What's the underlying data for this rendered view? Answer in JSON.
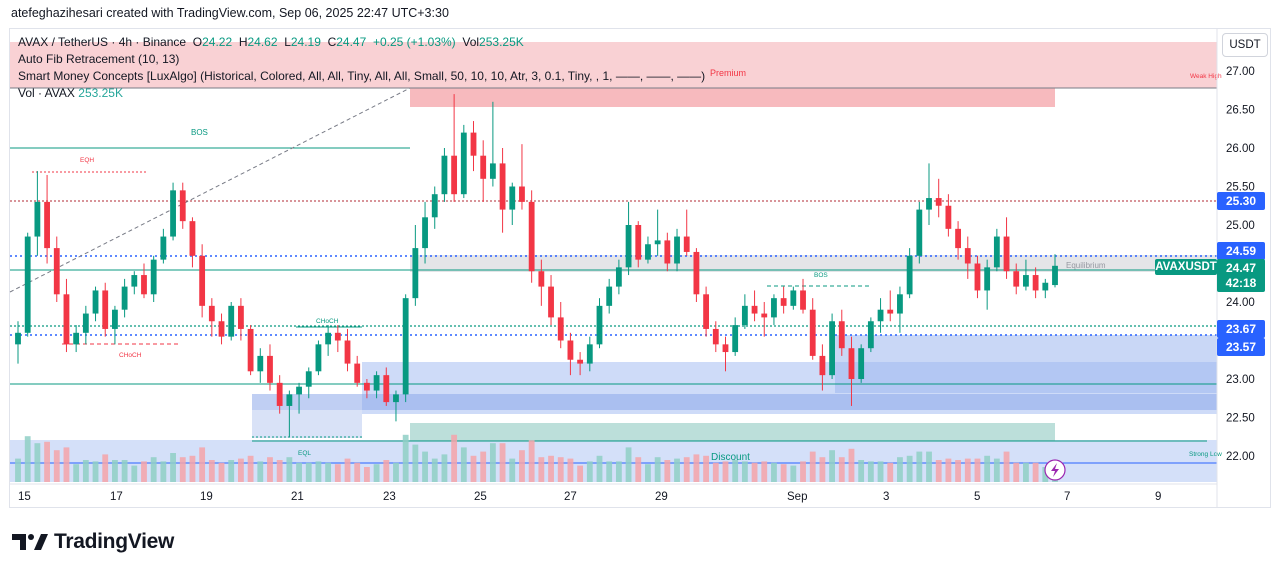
{
  "header": {
    "credit": "atefeghazihesari created with TradingView.com, Sep 06, 2025 22:47 UTC+3:30"
  },
  "legend": {
    "symbol": "AVAX / TetherUS · 4h · Binance",
    "o_label": "O",
    "o": "24.22",
    "h_label": "H",
    "h": "24.62",
    "l_label": "L",
    "l": "24.19",
    "c_label": "C",
    "c": "24.47",
    "change": "+0.25 (+1.03%)",
    "vol_label": "Vol",
    "vol": "253.25K",
    "indicator1": "Auto Fib Retracement (10, 13)",
    "indicator2": "Smart Money Concepts [LuxAlgo] (Historical, Colored, All, All, Tiny, All, All, Small, 50, 10, 10, Atr, 3, 0.1, Tiny, , 1, ——, ——, ——)",
    "volume_label": "Vol · AVAX",
    "volume_value": "253.25K"
  },
  "price_axis": {
    "currency": "USDT",
    "ticks": [
      "27.00",
      "26.50",
      "26.00",
      "25.50",
      "25.00",
      "24.50",
      "24.00",
      "23.50",
      "23.00",
      "22.50",
      "22.00"
    ]
  },
  "price_tags": [
    {
      "value": "25.30",
      "color": "#2962ff"
    },
    {
      "value": "24.59",
      "color": "#2962ff"
    },
    {
      "value": "24.47",
      "color": "#089981"
    },
    {
      "value": "42:18",
      "color": "#089981"
    },
    {
      "value": "23.67",
      "color": "#2962ff"
    },
    {
      "value": "23.57",
      "color": "#2962ff"
    }
  ],
  "ticker_tag": "AVAXUSDT",
  "time_axis": [
    "15",
    "17",
    "19",
    "21",
    "23",
    "25",
    "27",
    "29",
    "Sep",
    "3",
    "5",
    "7",
    "9"
  ],
  "annotations": {
    "premium": "Premium",
    "weak_high": "Weak High",
    "equilibrium": "Equilibrium",
    "discount": "Discount",
    "strong_low": "Strong Low",
    "bos": "BOS",
    "eqh": "EQH",
    "choch": "CHoCH",
    "eql": "EQL"
  },
  "brand": "TradingView",
  "colors": {
    "up": "#089981",
    "down": "#f23645",
    "fib": "#2962ff"
  },
  "chart_data": {
    "type": "candlestick",
    "title": "AVAX / TetherUS · 4h · Binance",
    "y_range": [
      21.7,
      27.3
    ],
    "x_unit": "4h bars from Aug 15, 2025",
    "ohlc": [
      [
        23.45,
        23.75,
        23.2,
        23.6
      ],
      [
        23.6,
        24.9,
        23.55,
        24.85
      ],
      [
        24.85,
        25.7,
        24.6,
        25.3
      ],
      [
        25.3,
        25.65,
        24.5,
        24.7
      ],
      [
        24.7,
        24.85,
        24.0,
        24.1
      ],
      [
        24.1,
        24.3,
        23.35,
        23.45
      ],
      [
        23.45,
        23.7,
        23.35,
        23.6
      ],
      [
        23.6,
        23.95,
        23.45,
        23.85
      ],
      [
        23.85,
        24.2,
        23.75,
        24.15
      ],
      [
        24.15,
        24.25,
        23.55,
        23.65
      ],
      [
        23.65,
        23.95,
        23.45,
        23.9
      ],
      [
        23.9,
        24.3,
        23.8,
        24.2
      ],
      [
        24.2,
        24.4,
        24.1,
        24.35
      ],
      [
        24.35,
        24.5,
        24.05,
        24.1
      ],
      [
        24.1,
        24.6,
        24.0,
        24.55
      ],
      [
        24.55,
        24.95,
        24.5,
        24.85
      ],
      [
        24.85,
        25.55,
        24.8,
        25.45
      ],
      [
        25.45,
        25.55,
        24.95,
        25.05
      ],
      [
        25.05,
        25.1,
        24.45,
        24.6
      ],
      [
        24.6,
        24.75,
        23.8,
        23.95
      ],
      [
        23.95,
        24.05,
        23.55,
        23.75
      ],
      [
        23.75,
        23.85,
        23.45,
        23.55
      ],
      [
        23.55,
        24.0,
        23.5,
        23.95
      ],
      [
        23.95,
        24.05,
        23.5,
        23.65
      ],
      [
        23.65,
        23.7,
        23.05,
        23.1
      ],
      [
        23.1,
        23.4,
        22.95,
        23.3
      ],
      [
        23.3,
        23.45,
        22.85,
        22.95
      ],
      [
        22.95,
        23.05,
        22.55,
        22.65
      ],
      [
        22.65,
        22.85,
        22.25,
        22.8
      ],
      [
        22.8,
        22.95,
        22.55,
        22.9
      ],
      [
        22.9,
        23.15,
        22.75,
        23.1
      ],
      [
        23.1,
        23.5,
        23.05,
        23.45
      ],
      [
        23.45,
        23.7,
        23.3,
        23.6
      ],
      [
        23.6,
        23.7,
        23.35,
        23.5
      ],
      [
        23.5,
        23.65,
        23.1,
        23.2
      ],
      [
        23.2,
        23.3,
        22.9,
        22.95
      ],
      [
        22.95,
        23.0,
        22.75,
        22.85
      ],
      [
        22.85,
        23.1,
        22.75,
        23.05
      ],
      [
        23.05,
        23.15,
        22.65,
        22.7
      ],
      [
        22.7,
        22.85,
        22.45,
        22.8
      ],
      [
        22.8,
        24.1,
        22.7,
        24.05
      ],
      [
        24.05,
        25.0,
        23.95,
        24.7
      ],
      [
        24.7,
        25.3,
        24.5,
        25.1
      ],
      [
        25.1,
        25.5,
        24.95,
        25.4
      ],
      [
        25.4,
        26.0,
        25.3,
        25.9
      ],
      [
        25.9,
        26.7,
        25.3,
        25.4
      ],
      [
        25.4,
        26.3,
        25.35,
        26.2
      ],
      [
        26.2,
        26.35,
        25.7,
        25.9
      ],
      [
        25.9,
        26.1,
        25.3,
        25.6
      ],
      [
        25.6,
        26.6,
        25.5,
        25.8
      ],
      [
        25.8,
        26.0,
        24.9,
        25.2
      ],
      [
        25.2,
        25.55,
        25.0,
        25.5
      ],
      [
        25.5,
        26.05,
        25.2,
        25.3
      ],
      [
        25.3,
        25.45,
        24.25,
        24.4
      ],
      [
        24.4,
        24.55,
        23.95,
        24.2
      ],
      [
        24.2,
        24.35,
        23.7,
        23.8
      ],
      [
        23.8,
        24.0,
        23.4,
        23.5
      ],
      [
        23.5,
        23.6,
        23.05,
        23.25
      ],
      [
        23.25,
        23.35,
        23.05,
        23.2
      ],
      [
        23.2,
        23.55,
        23.1,
        23.45
      ],
      [
        23.45,
        24.05,
        23.4,
        23.95
      ],
      [
        23.95,
        24.3,
        23.85,
        24.2
      ],
      [
        24.2,
        24.55,
        24.1,
        24.45
      ],
      [
        24.45,
        25.3,
        24.35,
        25.0
      ],
      [
        25.0,
        25.05,
        24.45,
        24.55
      ],
      [
        24.55,
        24.85,
        24.5,
        24.75
      ],
      [
        24.75,
        25.2,
        24.6,
        24.8
      ],
      [
        24.8,
        24.9,
        24.4,
        24.5
      ],
      [
        24.5,
        24.95,
        24.4,
        24.85
      ],
      [
        24.85,
        25.2,
        24.6,
        24.65
      ],
      [
        24.65,
        24.7,
        24.0,
        24.1
      ],
      [
        24.1,
        24.2,
        23.55,
        23.65
      ],
      [
        23.65,
        23.75,
        23.35,
        23.45
      ],
      [
        23.45,
        23.55,
        23.1,
        23.35
      ],
      [
        23.35,
        23.8,
        23.3,
        23.7
      ],
      [
        23.7,
        24.1,
        23.65,
        23.95
      ],
      [
        23.95,
        24.15,
        23.75,
        23.85
      ],
      [
        23.85,
        24.0,
        23.55,
        23.8
      ],
      [
        23.8,
        24.1,
        23.7,
        24.05
      ],
      [
        24.05,
        24.2,
        23.85,
        23.95
      ],
      [
        23.95,
        24.2,
        23.9,
        24.15
      ],
      [
        24.15,
        24.3,
        23.85,
        23.9
      ],
      [
        23.9,
        24.05,
        23.25,
        23.3
      ],
      [
        23.3,
        23.45,
        22.85,
        23.05
      ],
      [
        23.05,
        23.85,
        23.0,
        23.75
      ],
      [
        23.75,
        23.9,
        23.3,
        23.4
      ],
      [
        23.4,
        23.55,
        22.65,
        23.0
      ],
      [
        23.0,
        23.45,
        22.95,
        23.4
      ],
      [
        23.4,
        23.8,
        23.35,
        23.75
      ],
      [
        23.75,
        24.05,
        23.6,
        23.9
      ],
      [
        23.9,
        24.15,
        23.75,
        23.85
      ],
      [
        23.85,
        24.2,
        23.6,
        24.1
      ],
      [
        24.1,
        24.7,
        24.05,
        24.6
      ],
      [
        24.6,
        25.3,
        24.5,
        25.2
      ],
      [
        25.2,
        25.8,
        25.0,
        25.35
      ],
      [
        25.35,
        25.6,
        25.1,
        25.25
      ],
      [
        25.25,
        25.4,
        24.85,
        24.95
      ],
      [
        24.95,
        25.05,
        24.55,
        24.7
      ],
      [
        24.7,
        24.85,
        24.3,
        24.5
      ],
      [
        24.5,
        24.6,
        24.05,
        24.15
      ],
      [
        24.15,
        24.55,
        23.9,
        24.45
      ],
      [
        24.45,
        24.95,
        24.4,
        24.85
      ],
      [
        24.85,
        25.1,
        24.3,
        24.4
      ],
      [
        24.4,
        24.5,
        24.1,
        24.2
      ],
      [
        24.2,
        24.55,
        24.15,
        24.35
      ],
      [
        24.35,
        24.45,
        24.05,
        24.15
      ],
      [
        24.15,
        24.3,
        24.05,
        24.25
      ],
      [
        24.22,
        24.62,
        24.19,
        24.47
      ]
    ],
    "volume_label": "Vol · AVAX"
  }
}
